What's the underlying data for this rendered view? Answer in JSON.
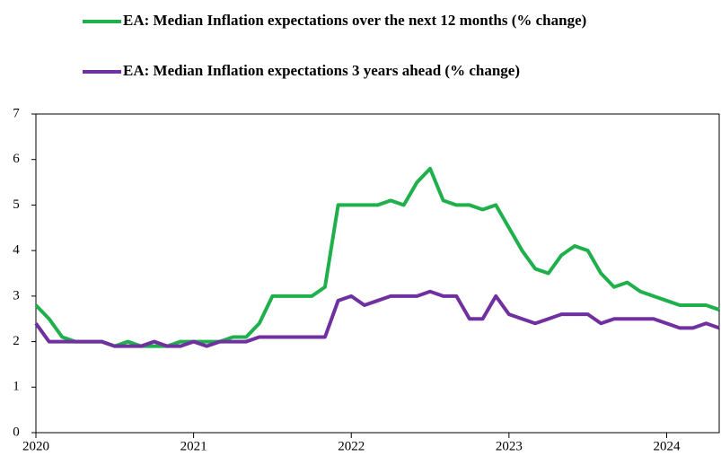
{
  "chart_data": {
    "type": "line",
    "x": [
      2020,
      2020.0833,
      2020.1667,
      2020.25,
      2020.3333,
      2020.4167,
      2020.5,
      2020.5833,
      2020.6667,
      2020.75,
      2020.8333,
      2020.9167,
      2021,
      2021.0833,
      2021.1667,
      2021.25,
      2021.3333,
      2021.4167,
      2021.5,
      2021.5833,
      2021.6667,
      2021.75,
      2021.8333,
      2021.9167,
      2022,
      2022.0833,
      2022.1667,
      2022.25,
      2022.3333,
      2022.4167,
      2022.5,
      2022.5833,
      2022.6667,
      2022.75,
      2022.8333,
      2022.9167,
      2023,
      2023.0833,
      2023.1667,
      2023.25,
      2023.3333,
      2023.4167,
      2023.5,
      2023.5833,
      2023.6667,
      2023.75,
      2023.8333,
      2023.9167,
      2024,
      2024.0833,
      2024.1667,
      2024.25,
      2024.3333
    ],
    "series": [
      {
        "name": "EA: Median Inflation expectations over the next 12 months (% change)",
        "color": "#1fb04c",
        "values": [
          2.8,
          2.5,
          2.1,
          2.0,
          2.0,
          2.0,
          1.9,
          2.0,
          1.9,
          1.9,
          1.9,
          2.0,
          2.0,
          2.0,
          2.0,
          2.1,
          2.1,
          2.4,
          3.0,
          3.0,
          3.0,
          3.0,
          3.2,
          5.0,
          5.0,
          5.0,
          5.0,
          5.1,
          5.0,
          5.5,
          5.8,
          5.1,
          5.0,
          5.0,
          4.9,
          5.0,
          4.5,
          4.0,
          3.6,
          3.5,
          3.9,
          4.1,
          4.0,
          3.5,
          3.2,
          3.3,
          3.1,
          3.0,
          2.9,
          2.8,
          2.8,
          2.8,
          2.7
        ]
      },
      {
        "name": "EA: Median Inflation expectations 3 years ahead (% change)",
        "color": "#7030a0",
        "values": [
          2.4,
          2.0,
          2.0,
          2.0,
          2.0,
          2.0,
          1.9,
          1.9,
          1.9,
          2.0,
          1.9,
          1.9,
          2.0,
          1.9,
          2.0,
          2.0,
          2.0,
          2.1,
          2.1,
          2.1,
          2.1,
          2.1,
          2.1,
          2.9,
          3.0,
          2.8,
          2.9,
          3.0,
          3.0,
          3.0,
          3.1,
          3.0,
          3.0,
          2.5,
          2.5,
          3.0,
          2.6,
          2.5,
          2.4,
          2.5,
          2.6,
          2.6,
          2.6,
          2.4,
          2.5,
          2.5,
          2.5,
          2.5,
          2.4,
          2.3,
          2.3,
          2.4,
          2.3
        ]
      }
    ],
    "xlim": [
      2020,
      2024.3333
    ],
    "xticks": [
      2020,
      2021,
      2022,
      2023,
      2024
    ],
    "ylim": [
      0,
      7
    ],
    "yticks": [
      0,
      1,
      2,
      3,
      4,
      5,
      6,
      7
    ],
    "legend": "top"
  }
}
